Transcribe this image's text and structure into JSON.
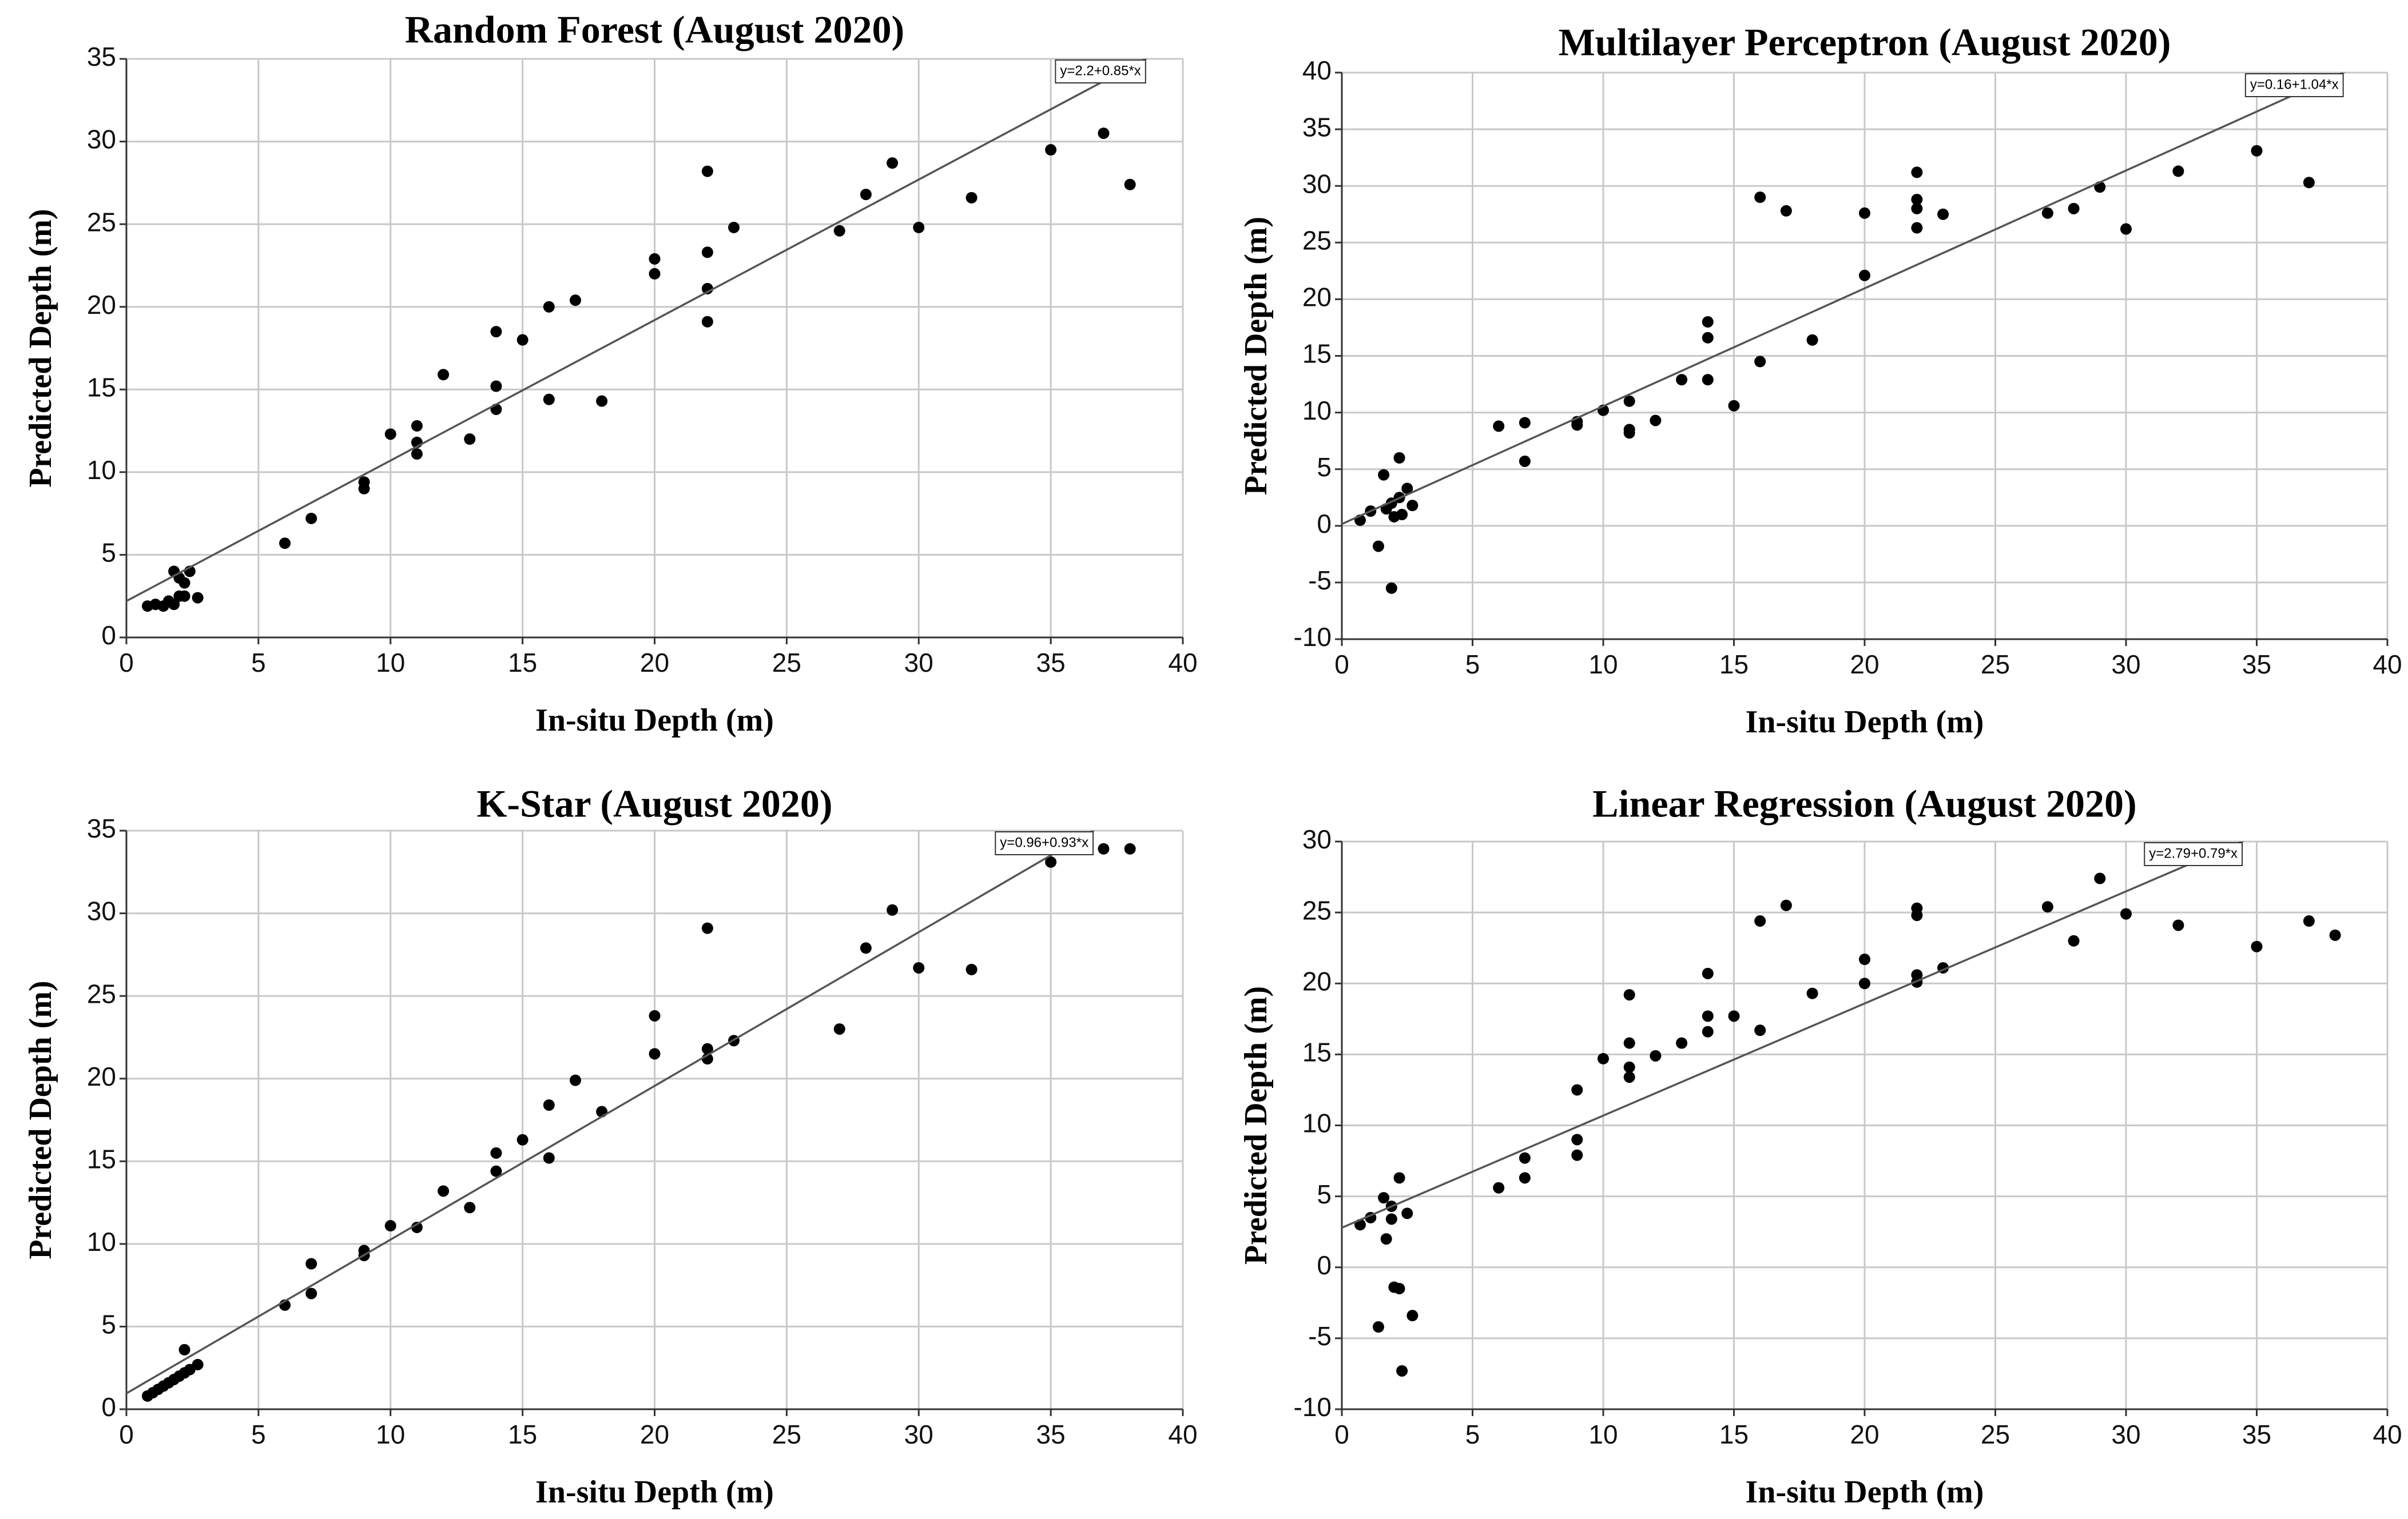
{
  "chart_data": [
    {
      "type": "scatter",
      "title": "Random Forest (August 2020)",
      "xlabel": "In-situ Depth (m)",
      "ylabel": "Predicted Depth (m)",
      "xlim": [
        0,
        40
      ],
      "ylim": [
        0,
        35
      ],
      "xticks": [
        0,
        5,
        10,
        15,
        20,
        25,
        30,
        35,
        40
      ],
      "yticks": [
        0,
        5,
        10,
        15,
        20,
        25,
        30,
        35
      ],
      "grid": true,
      "color": "#000000",
      "x": [
        0.8,
        1.1,
        1.4,
        1.6,
        1.8,
        1.8,
        2.0,
        2.0,
        2.2,
        2.2,
        2.4,
        2.7,
        6,
        7,
        9,
        9,
        10,
        11,
        11,
        11,
        12,
        13,
        14,
        14,
        14,
        15,
        16,
        16,
        17,
        18,
        20,
        20,
        22,
        22,
        22,
        22,
        23,
        27,
        28,
        29,
        30,
        32,
        35,
        37,
        38
      ],
      "values": [
        1.9,
        2.0,
        1.9,
        2.2,
        2.0,
        4.0,
        3.6,
        2.5,
        2.5,
        3.3,
        4.0,
        2.4,
        5.7,
        7.2,
        9.0,
        9.4,
        12.3,
        12.8,
        11.8,
        11.1,
        15.9,
        12.0,
        13.8,
        15.2,
        18.5,
        18.0,
        20.0,
        14.4,
        20.4,
        14.3,
        22.9,
        22.0,
        28.2,
        23.3,
        21.1,
        19.1,
        24.8,
        24.6,
        26.8,
        28.7,
        24.8,
        26.6,
        29.5,
        30.5,
        27.4
      ],
      "fit": {
        "label": "y=2.2+0.85*x",
        "intercept": 2.2,
        "slope": 0.85
      }
    },
    {
      "type": "scatter",
      "title": "Multilayer Perceptron (August 2020)",
      "xlabel": "In-situ Depth (m)",
      "ylabel": "Predicted Depth (m)",
      "xlim": [
        0,
        40
      ],
      "ylim": [
        -10,
        40
      ],
      "xticks": [
        0,
        5,
        10,
        15,
        20,
        25,
        30,
        35,
        40
      ],
      "yticks": [
        -10,
        -5,
        0,
        5,
        10,
        15,
        20,
        25,
        30,
        35,
        40
      ],
      "grid": true,
      "color": "#000000",
      "x": [
        0.7,
        1.1,
        1.4,
        1.6,
        1.7,
        1.9,
        1.9,
        2.0,
        2.2,
        2.2,
        2.3,
        2.5,
        2.7,
        6,
        7,
        7,
        9,
        9,
        10,
        11,
        11,
        11,
        12,
        13,
        14,
        14,
        14,
        15,
        16,
        16,
        17,
        18,
        20,
        20,
        22,
        22,
        22,
        22,
        23,
        27,
        28,
        29,
        30,
        32,
        35,
        37
      ],
      "values": [
        0.5,
        1.3,
        -1.8,
        4.5,
        1.5,
        -5.5,
        2.0,
        0.8,
        6.0,
        2.5,
        1.0,
        3.3,
        1.8,
        8.8,
        9.1,
        5.7,
        8.9,
        9.2,
        10.2,
        11.0,
        8.5,
        8.2,
        9.3,
        12.9,
        18.0,
        16.6,
        12.9,
        10.6,
        29.0,
        14.5,
        27.8,
        16.4,
        27.6,
        22.1,
        31.2,
        28.8,
        28.0,
        26.3,
        27.5,
        27.6,
        28.0,
        29.9,
        26.2,
        31.3,
        33.1,
        30.3
      ],
      "fit": {
        "label": "y=0.16+1.04*x",
        "intercept": 0.16,
        "slope": 1.04
      }
    },
    {
      "type": "scatter",
      "title": "K-Star (August 2020)",
      "xlabel": "In-situ Depth (m)",
      "ylabel": "Predicted Depth (m)",
      "xlim": [
        0,
        40
      ],
      "ylim": [
        0,
        35
      ],
      "xticks": [
        0,
        5,
        10,
        15,
        20,
        25,
        30,
        35,
        40
      ],
      "yticks": [
        0,
        5,
        10,
        15,
        20,
        25,
        30,
        35
      ],
      "grid": true,
      "color": "#000000",
      "x": [
        0.8,
        1.0,
        1.2,
        1.4,
        1.6,
        1.8,
        2.0,
        2.2,
        2.2,
        2.4,
        2.7,
        6,
        7,
        7,
        9,
        9,
        10,
        11,
        12,
        13,
        14,
        14,
        15,
        16,
        16,
        17,
        18,
        20,
        20,
        22,
        22,
        22,
        23,
        27,
        28,
        29,
        30,
        32,
        35,
        37,
        38
      ],
      "values": [
        0.8,
        1.0,
        1.2,
        1.4,
        1.6,
        1.8,
        2.0,
        2.2,
        3.6,
        2.4,
        2.7,
        6.3,
        8.8,
        7.0,
        9.3,
        9.6,
        11.1,
        11.0,
        13.2,
        12.2,
        15.5,
        14.4,
        16.3,
        18.4,
        15.2,
        19.9,
        18.0,
        23.8,
        21.5,
        29.1,
        21.8,
        21.2,
        22.3,
        23.0,
        27.9,
        30.2,
        26.7,
        26.6,
        33.1,
        33.9,
        33.9
      ],
      "fit": {
        "label": "y=0.96+0.93*x",
        "intercept": 0.96,
        "slope": 0.93
      }
    },
    {
      "type": "scatter",
      "title": "Linear Regression (August 2020)",
      "xlabel": "In-situ Depth (m)",
      "ylabel": "Predicted Depth (m)",
      "xlim": [
        0,
        40
      ],
      "ylim": [
        -10,
        30
      ],
      "xticks": [
        0,
        5,
        10,
        15,
        20,
        25,
        30,
        35,
        40
      ],
      "yticks": [
        -10,
        -5,
        0,
        5,
        10,
        15,
        20,
        25,
        30
      ],
      "grid": true,
      "color": "#000000",
      "x": [
        0.7,
        1.1,
        1.4,
        1.6,
        1.7,
        1.9,
        1.9,
        2.0,
        2.2,
        2.2,
        2.3,
        2.5,
        2.7,
        6,
        7,
        7,
        9,
        9,
        9,
        10,
        11,
        11,
        11,
        11,
        12,
        13,
        14,
        14,
        14,
        15,
        16,
        16,
        17,
        18,
        20,
        20,
        22,
        22,
        22,
        22,
        23,
        27,
        28,
        29,
        30,
        32,
        35,
        37,
        38
      ],
      "values": [
        3.0,
        3.5,
        -4.2,
        4.9,
        2.0,
        3.4,
        4.3,
        -1.4,
        -1.5,
        6.3,
        -7.3,
        3.8,
        -3.4,
        5.6,
        7.7,
        6.3,
        12.5,
        9.0,
        7.9,
        14.7,
        19.2,
        15.8,
        14.1,
        13.4,
        14.9,
        15.8,
        20.7,
        17.7,
        16.6,
        17.7,
        24.4,
        16.7,
        25.5,
        19.3,
        21.7,
        20.0,
        25.3,
        24.8,
        20.6,
        20.1,
        21.1,
        25.4,
        23.0,
        27.4,
        24.9,
        24.1,
        22.6,
        24.4,
        23.4
      ],
      "fit": {
        "label": "y=2.79+0.79*x",
        "intercept": 2.79,
        "slope": 0.79
      }
    }
  ]
}
